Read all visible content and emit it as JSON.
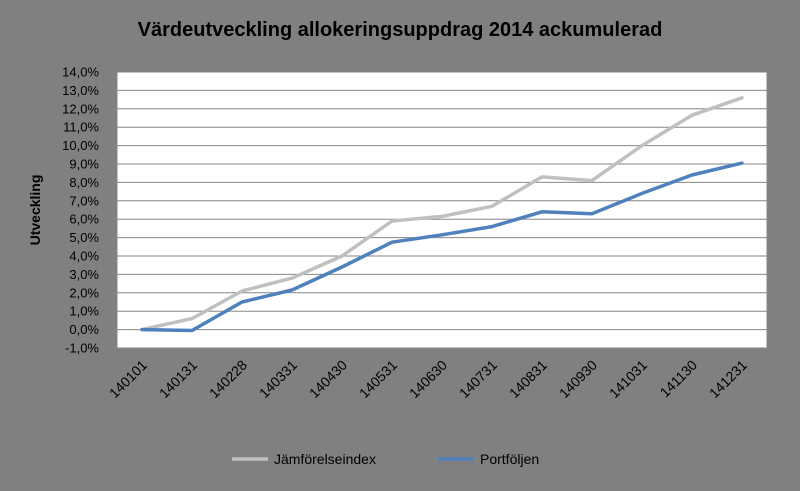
{
  "chart_data": {
    "type": "line",
    "title": "Värdeutveckling allokeringsuppdrag  2014 ackumulerad",
    "xlabel": "",
    "ylabel": "Utveckling",
    "categories": [
      "140101",
      "140131",
      "140228",
      "140331",
      "140430",
      "140531",
      "140630",
      "140731",
      "140831",
      "140930",
      "141031",
      "141130",
      "141231"
    ],
    "ylim": [
      -1,
      14
    ],
    "yticks": [
      "-1,0%",
      "0,0%",
      "1,0%",
      "2,0%",
      "3,0%",
      "4,0%",
      "5,0%",
      "6,0%",
      "7,0%",
      "8,0%",
      "9,0%",
      "10,0%",
      "11,0%",
      "12,0%",
      "13,0%",
      "14,0%"
    ],
    "grid": true,
    "legend_position": "bottom",
    "series": [
      {
        "name": "Jämförelseindex",
        "color": "#c0c0c0",
        "values": [
          0.0,
          0.6,
          2.1,
          2.8,
          4.0,
          5.9,
          6.15,
          6.7,
          8.3,
          8.1,
          10.0,
          11.65,
          12.6
        ]
      },
      {
        "name": "Portföljen",
        "color": "#4f81bd",
        "values": [
          0.0,
          -0.05,
          1.5,
          2.15,
          3.4,
          4.75,
          5.15,
          5.6,
          6.4,
          6.3,
          7.4,
          8.4,
          9.05
        ]
      }
    ]
  }
}
